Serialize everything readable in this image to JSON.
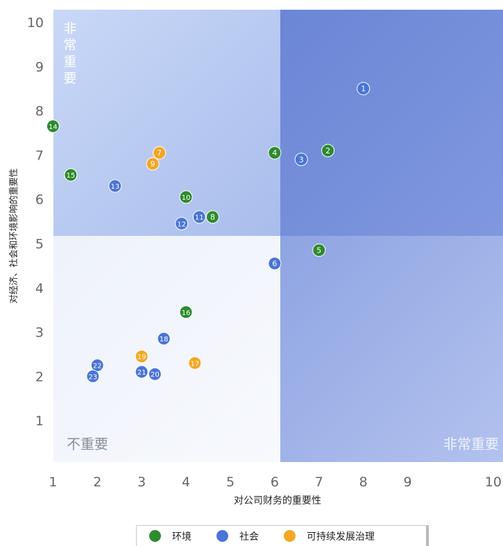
{
  "chart_data": {
    "type": "scatter",
    "xlabel": "对公司财务的重要性",
    "ylabel": "对经济、社会和环境影响的重要性",
    "xlim": [
      0,
      10
    ],
    "ylim": [
      0,
      10
    ],
    "x_ticks": [
      1,
      2,
      3,
      4,
      5,
      6,
      7,
      8,
      9,
      10
    ],
    "y_ticks": [
      1,
      2,
      3,
      4,
      5,
      6,
      7,
      8,
      9,
      10
    ],
    "quadrant_labels": {
      "top_left_vertical": "非常重要",
      "bottom_left": "不重要",
      "bottom_right": "非常重要"
    },
    "series": [
      {
        "name": "环境",
        "color": "#2e8b2e",
        "points": [
          {
            "id": "2",
            "x": 7.2,
            "y": 7.1
          },
          {
            "id": "4",
            "x": 6.0,
            "y": 7.05
          },
          {
            "id": "5",
            "x": 7.0,
            "y": 4.85
          },
          {
            "id": "8",
            "x": 4.6,
            "y": 5.6
          },
          {
            "id": "10",
            "x": 4.0,
            "y": 6.05
          },
          {
            "id": "14",
            "x": 1.0,
            "y": 7.65
          },
          {
            "id": "15",
            "x": 1.4,
            "y": 6.55
          },
          {
            "id": "16",
            "x": 4.0,
            "y": 3.45
          }
        ]
      },
      {
        "name": "社会",
        "color": "#4a74d8",
        "points": [
          {
            "id": "1",
            "x": 8.0,
            "y": 8.5
          },
          {
            "id": "3",
            "x": 6.6,
            "y": 6.9
          },
          {
            "id": "6",
            "x": 6.0,
            "y": 4.55
          },
          {
            "id": "11",
            "x": 4.3,
            "y": 5.6
          },
          {
            "id": "12",
            "x": 3.9,
            "y": 5.45
          },
          {
            "id": "13",
            "x": 2.4,
            "y": 6.3
          },
          {
            "id": "18",
            "x": 3.5,
            "y": 2.85
          },
          {
            "id": "20",
            "x": 3.3,
            "y": 2.05
          },
          {
            "id": "21",
            "x": 3.0,
            "y": 2.1
          },
          {
            "id": "22",
            "x": 2.0,
            "y": 2.25
          },
          {
            "id": "23",
            "x": 1.9,
            "y": 2.0
          }
        ]
      },
      {
        "name": "可持续发展治理",
        "color": "#f5a623",
        "points": [
          {
            "id": "7",
            "x": 3.4,
            "y": 7.05
          },
          {
            "id": "9",
            "x": 3.25,
            "y": 6.8
          },
          {
            "id": "17",
            "x": 4.2,
            "y": 2.3
          },
          {
            "id": "19",
            "x": 3.0,
            "y": 2.45
          }
        ]
      }
    ],
    "legend": [
      "环境",
      "社会",
      "可持续发展治理"
    ],
    "legend_position": "bottom",
    "grid": false
  }
}
